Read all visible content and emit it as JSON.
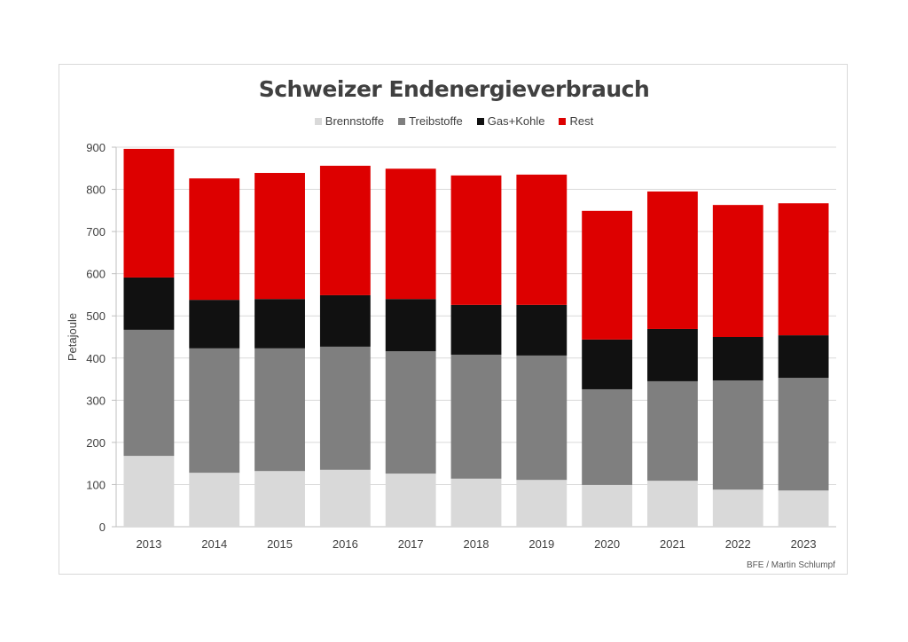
{
  "chart_data": {
    "type": "bar",
    "stacked": true,
    "title": "Schweizer Endenergieverbrauch",
    "ylabel": "Petajoule",
    "xlabel": "",
    "ylim": [
      0,
      900
    ],
    "yticks": [
      0,
      100,
      200,
      300,
      400,
      500,
      600,
      700,
      800,
      900
    ],
    "grid": true,
    "legend_placement": "top",
    "categories": [
      "2013",
      "2014",
      "2015",
      "2016",
      "2017",
      "2018",
      "2019",
      "2020",
      "2021",
      "2022",
      "2023"
    ],
    "series": [
      {
        "name": "Brennstoffe",
        "color": "#d9d9d9",
        "values": [
          168,
          128,
          132,
          135,
          126,
          114,
          111,
          99,
          109,
          88,
          86
        ]
      },
      {
        "name": "Treibstoffe",
        "color": "#7f7f7f",
        "values": [
          299,
          295,
          291,
          292,
          290,
          294,
          295,
          227,
          236,
          259,
          267
        ]
      },
      {
        "name": "Gas+Kohle",
        "color": "#111111",
        "values": [
          124,
          115,
          117,
          122,
          124,
          118,
          120,
          118,
          124,
          103,
          101
        ]
      },
      {
        "name": "Rest",
        "color": "#dd0000",
        "values": [
          305,
          288,
          299,
          307,
          309,
          307,
          309,
          305,
          326,
          313,
          313
        ]
      }
    ],
    "source": "BFE / Martin Schlumpf"
  }
}
